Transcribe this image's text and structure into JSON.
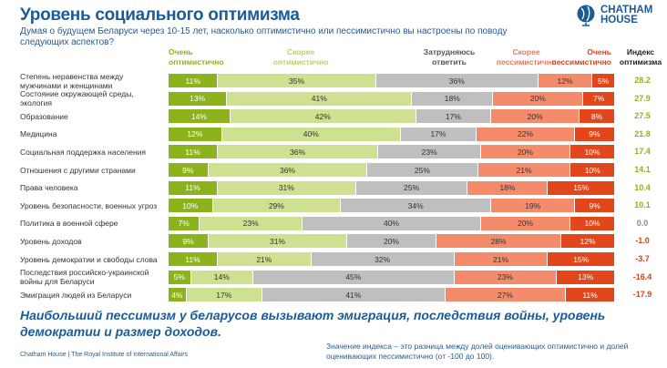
{
  "header": {
    "title": "Уровень социального оптимизма",
    "subtitle": "Думая о будущем Беларуси через 10-15 лет, насколько оптимистично или пессимистично вы настроены по поводу следующих аспектов?"
  },
  "logo": {
    "line1": "CHATHAM",
    "line2": "HOUSE"
  },
  "chart_data": {
    "type": "bar",
    "stacked": true,
    "orientation": "horizontal",
    "series": [
      {
        "name": "Очень оптимистично",
        "color": "#8db31c",
        "values": [
          11,
          13,
          14,
          12,
          11,
          9,
          11,
          10,
          7,
          9,
          11,
          5,
          4
        ]
      },
      {
        "name": "Скорее оптимистично",
        "color": "#cfe191",
        "values": [
          35,
          41,
          42,
          40,
          36,
          36,
          31,
          29,
          23,
          31,
          21,
          14,
          17
        ]
      },
      {
        "name": "Затрудняюсь ответить",
        "color": "#bfbfbf",
        "values": [
          36,
          18,
          17,
          17,
          23,
          25,
          25,
          34,
          40,
          20,
          32,
          45,
          41
        ]
      },
      {
        "name": "Скорее пессимистично",
        "color": "#f48c6c",
        "values": [
          12,
          20,
          20,
          22,
          20,
          21,
          18,
          19,
          20,
          28,
          21,
          23,
          27
        ]
      },
      {
        "name": "Очень пессимистично",
        "color": "#e1471a",
        "values": [
          5,
          7,
          8,
          9,
          10,
          10,
          15,
          9,
          10,
          12,
          15,
          13,
          11
        ]
      }
    ],
    "categories": [
      "Степень неравенства между мужчинами и женщинами",
      "Состояние окружающей среды, экология",
      "Образование",
      "Медицина",
      "Социальная поддержка населения",
      "Отношения с другими странами",
      "Права человека",
      "Уровень безопасности, военных угроз",
      "Политика в военной сфере",
      "Уровень доходов",
      "Уровень демократии и свободы слова",
      "Последствия российско-украинской войны для Беларуси",
      "Эмиграция людей из Беларуси"
    ],
    "index_label": "Индекс оптимизма",
    "index": [
      "28.2",
      "27.9",
      "27.5",
      "21.8",
      "17.4",
      "14.1",
      "10.4",
      "10.1",
      "0.0",
      "-1.0",
      "-3.7",
      "-16.4",
      "-17.9"
    ],
    "index_colors": {
      "positive": "#8db31c",
      "zero": "#888888",
      "negative": "#d9401a"
    },
    "legend_placement": "top",
    "unit_suffix": "%"
  },
  "conclusion": "Наибольший пессимизм у беларусов вызывают эмиграция, последствия войны, уровень демократии и размер доходов.",
  "footer": "Chatham House  |  The Royal Institute of International Affairs",
  "note": "Значение индекса – это разница между долей оценивающих оптимистично и долей оценивающих пессимистично (от -100 до 100)."
}
